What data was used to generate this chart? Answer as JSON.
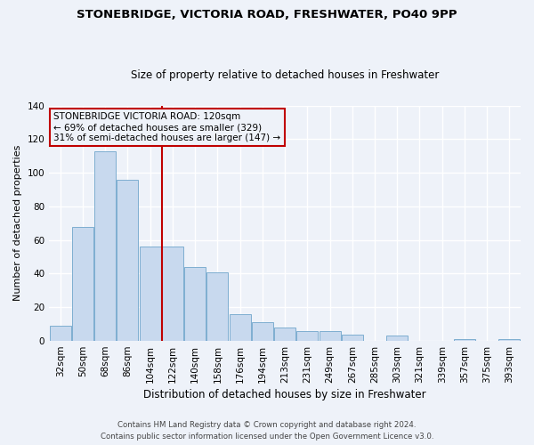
{
  "title1": "STONEBRIDGE, VICTORIA ROAD, FRESHWATER, PO40 9PP",
  "title2": "Size of property relative to detached houses in Freshwater",
  "xlabel": "Distribution of detached houses by size in Freshwater",
  "ylabel": "Number of detached properties",
  "footer1": "Contains HM Land Registry data © Crown copyright and database right 2024.",
  "footer2": "Contains public sector information licensed under the Open Government Licence v3.0.",
  "bar_labels": [
    "32sqm",
    "50sqm",
    "68sqm",
    "86sqm",
    "104sqm",
    "122sqm",
    "140sqm",
    "158sqm",
    "176sqm",
    "194sqm",
    "213sqm",
    "231sqm",
    "249sqm",
    "267sqm",
    "285sqm",
    "303sqm",
    "321sqm",
    "339sqm",
    "357sqm",
    "375sqm",
    "393sqm"
  ],
  "bar_values": [
    9,
    68,
    113,
    96,
    56,
    56,
    44,
    41,
    16,
    11,
    8,
    6,
    6,
    4,
    0,
    3,
    0,
    0,
    1,
    0,
    1
  ],
  "bar_color": "#c8d9ee",
  "bar_edge_color": "#7eaed0",
  "vline_color": "#c00000",
  "annotation_title": "STONEBRIDGE VICTORIA ROAD: 120sqm",
  "annotation_line1": "← 69% of detached houses are smaller (329)",
  "annotation_line2": "31% of semi-detached houses are larger (147) →",
  "annotation_box_edge_color": "#c00000",
  "ylim": [
    0,
    140
  ],
  "yticks": [
    0,
    20,
    40,
    60,
    80,
    100,
    120,
    140
  ],
  "background_color": "#eef2f9"
}
